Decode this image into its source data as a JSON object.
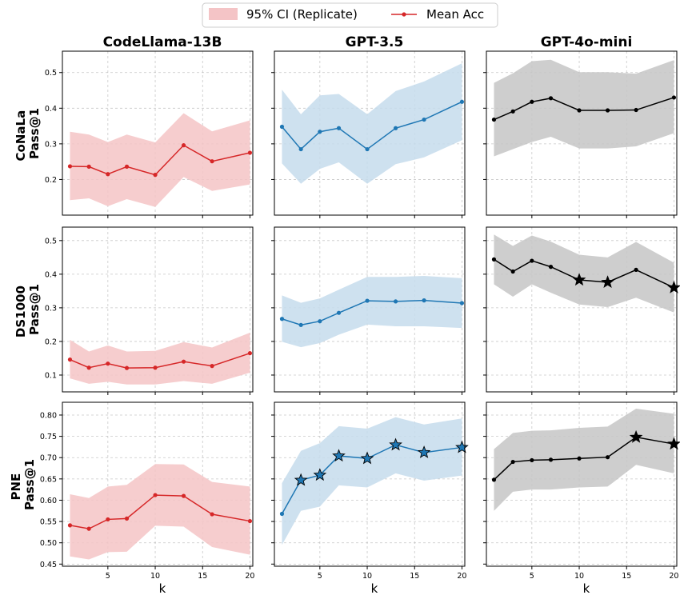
{
  "legend": {
    "ci_label": "95% CI (Replicate)",
    "mean_label": "Mean Acc"
  },
  "column_titles": [
    "CodeLlama-13B",
    "GPT-3.5",
    "GPT-4o-mini"
  ],
  "row_labels": [
    [
      "CoNaLa",
      "Pass@1"
    ],
    [
      "DS1000",
      "Pass@1"
    ],
    [
      "PNE",
      "Pass@1"
    ]
  ],
  "xlabel": "k",
  "colors": {
    "CodeLlama-13B": {
      "line": "#d62728",
      "band": "#f4c4c6"
    },
    "GPT-3.5": {
      "line": "#1f77b4",
      "band": "#c6dcec"
    },
    "GPT-4o-mini": {
      "line": "#000000",
      "band": "#c6c6c6"
    }
  },
  "chart_data": [
    {
      "type": "line",
      "dataset": "CoNaLa",
      "ylabel": "CoNaLa Pass@1",
      "ylim": [
        0.1,
        0.56
      ],
      "yticks": [
        0.2,
        0.3,
        0.4,
        0.5
      ],
      "ytick_labels": [
        "0.2",
        "0.3",
        "0.4",
        "0.5"
      ],
      "xlim": [
        0.2,
        20.3
      ],
      "xticks": [
        5,
        10,
        15,
        20
      ],
      "x": [
        1,
        3,
        5,
        7,
        10,
        13,
        16,
        20
      ],
      "grid": true,
      "panels": [
        {
          "model": "CodeLlama-13B",
          "mean": [
            0.237,
            0.236,
            0.215,
            0.236,
            0.213,
            0.296,
            0.251,
            0.275
          ],
          "ci_low": [
            0.142,
            0.147,
            0.125,
            0.145,
            0.123,
            0.207,
            0.168,
            0.186
          ],
          "ci_high": [
            0.334,
            0.326,
            0.305,
            0.326,
            0.304,
            0.386,
            0.335,
            0.366
          ],
          "stars": []
        },
        {
          "model": "GPT-3.5",
          "mean": [
            0.348,
            0.285,
            0.334,
            0.344,
            0.285,
            0.344,
            0.368,
            0.418
          ],
          "ci_low": [
            0.245,
            0.188,
            0.23,
            0.248,
            0.188,
            0.243,
            0.262,
            0.31
          ],
          "ci_high": [
            0.452,
            0.383,
            0.436,
            0.44,
            0.383,
            0.448,
            0.475,
            0.526
          ],
          "stars": []
        },
        {
          "model": "GPT-4o-mini",
          "mean": [
            0.368,
            0.391,
            0.418,
            0.428,
            0.394,
            0.394,
            0.395,
            0.43
          ],
          "ci_low": [
            0.265,
            0.285,
            0.305,
            0.32,
            0.287,
            0.287,
            0.293,
            0.33
          ],
          "ci_high": [
            0.471,
            0.498,
            0.532,
            0.536,
            0.501,
            0.501,
            0.497,
            0.535
          ],
          "stars": []
        }
      ]
    },
    {
      "type": "line",
      "dataset": "DS1000",
      "ylabel": "DS1000 Pass@1",
      "ylim": [
        0.05,
        0.54
      ],
      "yticks": [
        0.1,
        0.2,
        0.3,
        0.4,
        0.5
      ],
      "ytick_labels": [
        "0.1",
        "0.2",
        "0.3",
        "0.4",
        "0.5"
      ],
      "xlim": [
        0.2,
        20.3
      ],
      "xticks": [
        5,
        10,
        15,
        20
      ],
      "x": [
        1,
        3,
        5,
        7,
        10,
        13,
        16,
        20
      ],
      "grid": true,
      "panels": [
        {
          "model": "CodeLlama-13B",
          "mean": [
            0.146,
            0.122,
            0.134,
            0.121,
            0.122,
            0.14,
            0.127,
            0.165
          ],
          "ci_low": [
            0.09,
            0.074,
            0.08,
            0.072,
            0.072,
            0.082,
            0.074,
            0.107
          ],
          "ci_high": [
            0.205,
            0.17,
            0.188,
            0.17,
            0.172,
            0.198,
            0.182,
            0.226
          ],
          "stars": []
        },
        {
          "model": "GPT-3.5",
          "mean": [
            0.267,
            0.249,
            0.26,
            0.285,
            0.321,
            0.319,
            0.322,
            0.314
          ],
          "ci_low": [
            0.199,
            0.183,
            0.195,
            0.22,
            0.25,
            0.245,
            0.245,
            0.24
          ],
          "ci_high": [
            0.337,
            0.315,
            0.328,
            0.354,
            0.392,
            0.392,
            0.395,
            0.388
          ],
          "stars": []
        },
        {
          "model": "GPT-4o-mini",
          "mean": [
            0.444,
            0.408,
            0.44,
            0.422,
            0.383,
            0.376,
            0.413,
            0.36
          ],
          "ci_low": [
            0.37,
            0.333,
            0.37,
            0.345,
            0.31,
            0.302,
            0.33,
            0.286
          ],
          "ci_high": [
            0.518,
            0.484,
            0.515,
            0.497,
            0.458,
            0.45,
            0.496,
            0.434
          ],
          "stars": [
            10,
            13,
            20
          ]
        }
      ]
    },
    {
      "type": "line",
      "dataset": "PNE",
      "ylabel": "PNE Pass@1",
      "ylim": [
        0.445,
        0.83
      ],
      "yticks": [
        0.45,
        0.5,
        0.55,
        0.6,
        0.65,
        0.7,
        0.75,
        0.8
      ],
      "ytick_labels": [
        "0.45",
        "0.50",
        "0.55",
        "0.60",
        "0.65",
        "0.70",
        "0.75",
        "0.80"
      ],
      "xlim": [
        0.2,
        20.3
      ],
      "xticks": [
        5,
        10,
        15,
        20
      ],
      "x": [
        1,
        3,
        5,
        7,
        10,
        13,
        16,
        20
      ],
      "grid": true,
      "panels": [
        {
          "model": "CodeLlama-13B",
          "mean": [
            0.541,
            0.533,
            0.555,
            0.557,
            0.612,
            0.61,
            0.567,
            0.551
          ],
          "ci_low": [
            0.468,
            0.461,
            0.478,
            0.479,
            0.54,
            0.538,
            0.49,
            0.472
          ],
          "ci_high": [
            0.614,
            0.605,
            0.632,
            0.636,
            0.685,
            0.684,
            0.643,
            0.632
          ],
          "stars": []
        },
        {
          "model": "GPT-3.5",
          "mean": [
            0.568,
            0.647,
            0.659,
            0.704,
            0.698,
            0.73,
            0.712,
            0.724
          ],
          "ci_low": [
            0.495,
            0.575,
            0.585,
            0.635,
            0.63,
            0.663,
            0.646,
            0.658
          ],
          "ci_high": [
            0.64,
            0.716,
            0.734,
            0.774,
            0.768,
            0.795,
            0.778,
            0.792
          ],
          "stars": [
            3,
            5,
            7,
            10,
            13,
            16,
            20
          ]
        },
        {
          "model": "GPT-4o-mini",
          "mean": [
            0.648,
            0.69,
            0.694,
            0.695,
            0.698,
            0.701,
            0.748,
            0.732
          ],
          "ci_low": [
            0.575,
            0.62,
            0.625,
            0.625,
            0.63,
            0.632,
            0.683,
            0.663
          ],
          "ci_high": [
            0.72,
            0.758,
            0.763,
            0.764,
            0.77,
            0.773,
            0.815,
            0.803
          ],
          "stars": [
            16,
            20
          ]
        }
      ]
    }
  ]
}
